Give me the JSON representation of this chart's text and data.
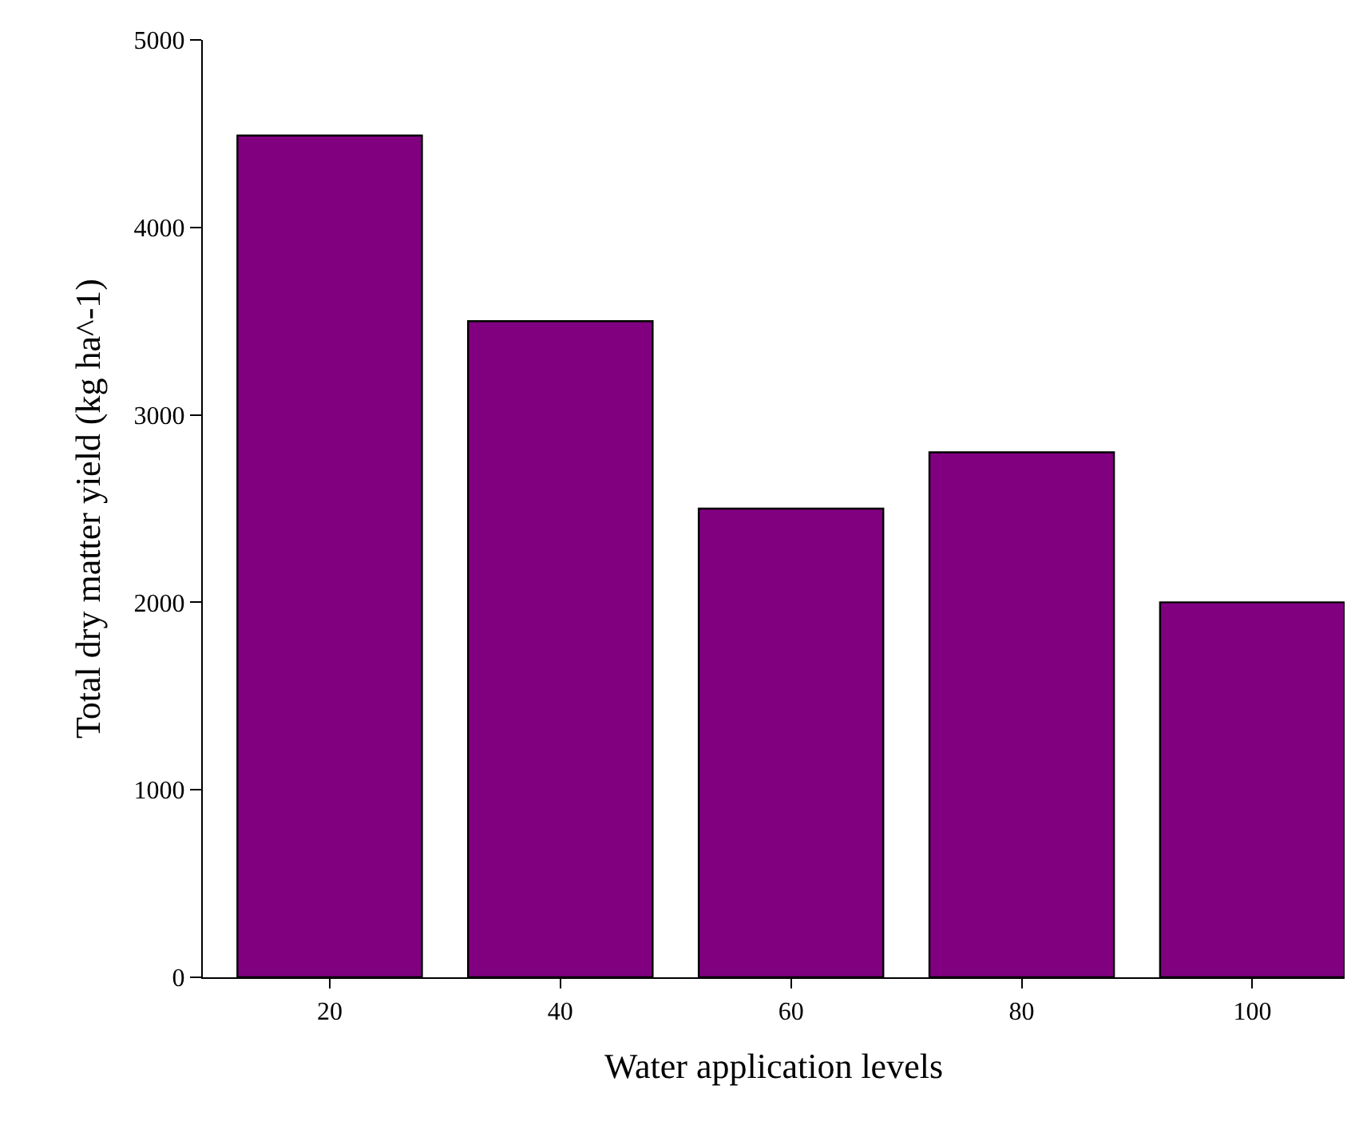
{
  "chart_data": {
    "type": "bar",
    "xlabel": "Water application levels",
    "ylabel": "Total dry matter yield (kg ha^-1)",
    "categories": [
      "20",
      "40",
      "60",
      "80",
      "100"
    ],
    "values": [
      4490,
      3500,
      2500,
      2800,
      2000
    ],
    "color": "#800080",
    "ylim": [
      0,
      5000
    ],
    "yticks": [
      0,
      1000,
      2000,
      3000,
      4000,
      5000
    ]
  }
}
